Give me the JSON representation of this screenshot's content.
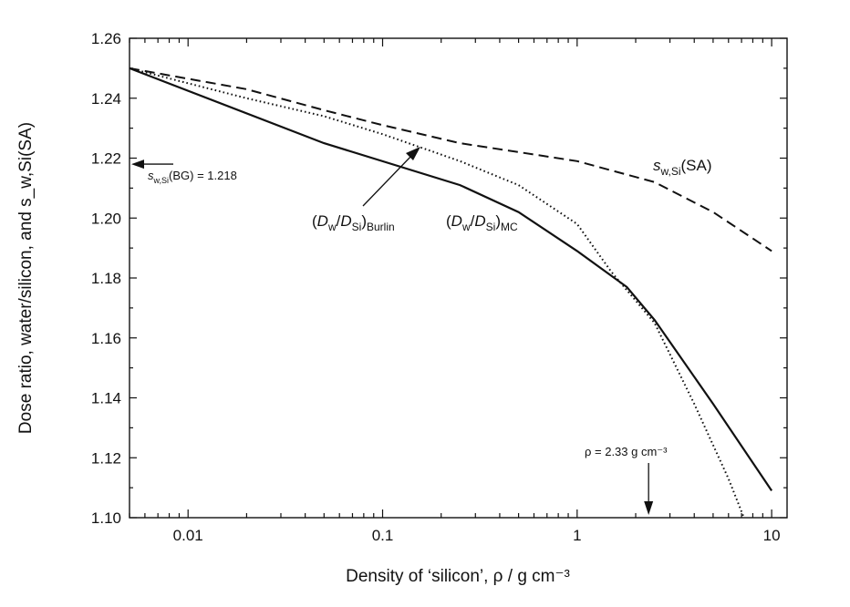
{
  "chart_data": {
    "type": "line",
    "title": "",
    "xlabel": "Density of ‘silicon’, ρ / g cm⁻³",
    "ylabel": "Dose ratio, water/silicon, and s_w,Si(SA)",
    "xscale": "log",
    "xlim": [
      0.005,
      12
    ],
    "ylim": [
      1.1,
      1.26
    ],
    "xticks": [
      0.01,
      0.1,
      1,
      10
    ],
    "xtick_labels": [
      "0.01",
      "0.1",
      "1",
      "10"
    ],
    "yticks": [
      1.1,
      1.12,
      1.14,
      1.16,
      1.18,
      1.2,
      1.22,
      1.24,
      1.26
    ],
    "ytick_labels": [
      "1.10",
      "1.12",
      "1.14",
      "1.16",
      "1.18",
      "1.20",
      "1.22",
      "1.24",
      "1.26"
    ],
    "grid": false,
    "series": [
      {
        "name": "(D_w/D_Si)_MC",
        "style": "solid",
        "x": [
          0.005,
          0.05,
          0.25,
          0.5,
          1,
          1.8,
          2.5,
          5,
          10
        ],
        "y": [
          1.25,
          1.225,
          1.211,
          1.202,
          1.189,
          1.177,
          1.166,
          1.138,
          1.109
        ]
      },
      {
        "name": "(D_w/D_Si)_Burlin",
        "style": "dotted",
        "x": [
          0.005,
          0.02,
          0.05,
          0.1,
          0.25,
          0.5,
          1,
          1.5,
          2.5,
          4,
          6,
          7.2
        ],
        "y": [
          1.25,
          1.24,
          1.234,
          1.228,
          1.219,
          1.211,
          1.198,
          1.182,
          1.165,
          1.138,
          1.113,
          1.1
        ]
      },
      {
        "name": "s_w,Si(SA)",
        "style": "dashed",
        "x": [
          0.005,
          0.02,
          0.05,
          0.1,
          0.25,
          0.5,
          1,
          2.5,
          5,
          10
        ],
        "y": [
          1.25,
          1.243,
          1.236,
          1.231,
          1.225,
          1.222,
          1.219,
          1.212,
          1.202,
          1.189
        ]
      }
    ],
    "annotations": {
      "bg_value": 1.218,
      "bg_label": "(BG) = 1.218",
      "s_symbol": "s",
      "s_subscript": "w,Si",
      "sa_suffix": "(SA)",
      "burlin_subscript": "Burlin",
      "mc_subscript": "MC",
      "ratio_w": "w",
      "ratio_si": "Si",
      "rho_marker_value": 2.33,
      "rho_label": "ρ = 2.33 g cm⁻³"
    }
  }
}
